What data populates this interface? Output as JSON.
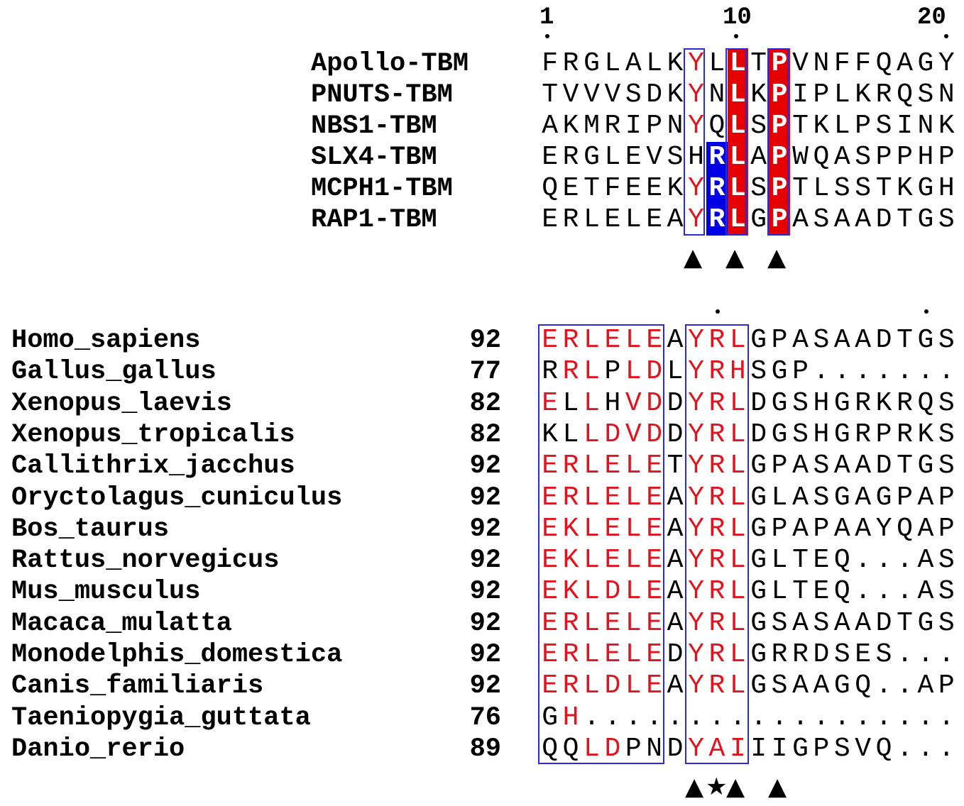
{
  "ruler": {
    "labels": [
      "1",
      "10",
      "20"
    ]
  },
  "top_alignment": {
    "rows": [
      {
        "label": "Apollo-TBM",
        "seq": "FRGLALKYLLTPVNFFQAGY"
      },
      {
        "label": "PNUTS-TBM",
        "seq": "TVVVSDKYNLKPIPLKRQSN"
      },
      {
        "label": "NBS1-TBM",
        "seq": "AKMRIPNYQLSPTKLPSINK"
      },
      {
        "label": "SLX4-TBM",
        "seq": "ERGLEVSHRLAPWQASPPHP"
      },
      {
        "label": "MCPH1-TBM",
        "seq": "QETFEEKYRLSPTLSSTKGH"
      },
      {
        "label": "RAP1-TBM",
        "seq": "ERLELEAYRLGPASAADTGS"
      }
    ],
    "markers": [
      "▲",
      "▲",
      "▲"
    ]
  },
  "bottom_alignment": {
    "rows": [
      {
        "label": "Homo_sapiens",
        "start": "92",
        "seq": "ERLELEAYRLGPASAADTGS"
      },
      {
        "label": "Gallus_gallus",
        "start": "77",
        "seq": "RRLPLDLYRHSGP......."
      },
      {
        "label": "Xenopus_laevis",
        "start": "82",
        "seq": "ELLHVDDYRLDGSHGRKRQS"
      },
      {
        "label": "Xenopus_tropicalis",
        "start": "82",
        "seq": "KLLDVDDYRLDGSHGRPRKS"
      },
      {
        "label": "Callithrix_jacchus",
        "start": "92",
        "seq": "ERLELETYRLGPASAADTGS"
      },
      {
        "label": "Oryctolagus_cuniculus",
        "start": "92",
        "seq": "ERLELEAYRLGLASGAGPAP"
      },
      {
        "label": "Bos_taurus",
        "start": "92",
        "seq": "EKLELEAYRLGPAPAAYQAP"
      },
      {
        "label": "Rattus_norvegicus",
        "start": "92",
        "seq": "EKLELEAYRLGLTEQ...AS"
      },
      {
        "label": "Mus_musculus",
        "start": "92",
        "seq": "EKLDLEAYRLGLTEQ...AS"
      },
      {
        "label": "Macaca_mulatta",
        "start": "92",
        "seq": "ERLELEAYRLGSASAADTGS"
      },
      {
        "label": "Monodelphis_domestica",
        "start": "92",
        "seq": "ERLELEDYRLGRRDSES..."
      },
      {
        "label": "Canis_familiaris",
        "start": "92",
        "seq": "ERLDLEAYRLGSAAGQ..AP"
      },
      {
        "label": "Taeniopygia_guttata",
        "start": "76",
        "seq": "GH.................."
      },
      {
        "label": "Danio_rerio",
        "start": "89",
        "seq": "QQLDPNDYAIIIGPSVQ..."
      }
    ],
    "markers": [
      "▲",
      "★",
      "▲",
      "▲"
    ]
  },
  "colors": {
    "conserved_red": "#e0141e",
    "highlight_red": "#e60000",
    "highlight_blue": "#0000e6",
    "box_blue": "#2a2ad6"
  }
}
